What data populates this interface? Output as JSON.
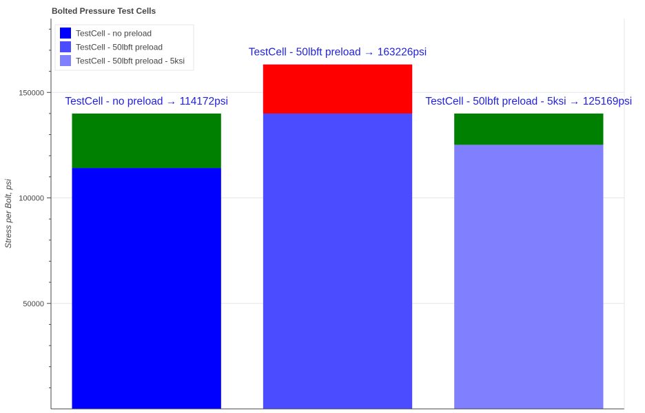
{
  "chart_data": {
    "type": "bar",
    "title": "Bolted Pressure Test Cells",
    "ylabel": "Stress per Bolt, psi",
    "xlabel": "",
    "ylim": [
      0,
      185000
    ],
    "yticks": [
      50000,
      100000,
      150000
    ],
    "grid": true,
    "legend_position": "top-left",
    "threshold": 140000,
    "bars": [
      {
        "name": "TestCell - no preload",
        "value": 114172,
        "label": "TestCell - no preload → 114172psi",
        "color": "#0000ff",
        "cap_color": "#008000"
      },
      {
        "name": "TestCell - 50lbft preload",
        "value": 163226,
        "label": "TestCell - 50lbft preload → 163226psi",
        "color": "#4b4bff",
        "cap_color": "#ff0000"
      },
      {
        "name": "TestCell - 50lbft preload - 5ksi",
        "value": 125169,
        "label": "TestCell - 50lbft preload - 5ksi → 125169psi",
        "color": "#8080ff",
        "cap_color": "#008000"
      }
    ]
  }
}
